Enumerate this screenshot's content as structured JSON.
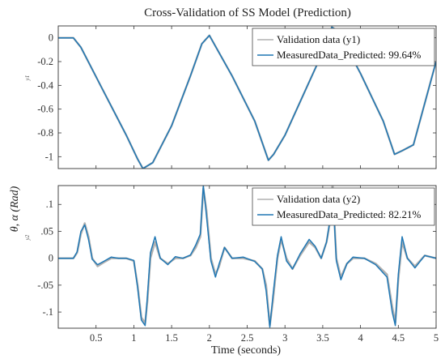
{
  "chart_data": [
    {
      "type": "line",
      "title": "Cross-Validation of SS Model (Prediction)",
      "ylabel": "y1",
      "ylim": [
        -1.1,
        0.1
      ],
      "yticks": [
        0,
        -0.2,
        -0.4,
        -0.6,
        -0.8,
        -1
      ],
      "xlim": [
        0,
        5
      ],
      "grid": false,
      "legend_position": "top-right",
      "series": [
        {
          "name": "Validation data (y1)",
          "color": "#b0b0b0",
          "x": [
            0,
            0.2,
            0.3,
            0.6,
            0.9,
            1.05,
            1.12,
            1.25,
            1.5,
            1.75,
            1.9,
            2.0,
            2.3,
            2.6,
            2.78,
            2.85,
            3.0,
            3.3,
            3.55,
            3.62,
            3.7,
            4.0,
            4.3,
            4.45,
            4.55,
            4.7,
            5.0
          ],
          "y": [
            0,
            0,
            -0.08,
            -0.45,
            -0.82,
            -1.02,
            -1.1,
            -1.05,
            -0.74,
            -0.32,
            -0.05,
            0.02,
            -0.32,
            -0.7,
            -1.03,
            -0.98,
            -0.82,
            -0.4,
            -0.05,
            0.09,
            0.06,
            -0.3,
            -0.7,
            -0.98,
            -0.95,
            -0.9,
            -0.2
          ]
        },
        {
          "name": "MeasuredData_Predicted: 99.64%",
          "color": "#1f77b4",
          "x": [
            0,
            0.2,
            0.3,
            0.6,
            0.9,
            1.05,
            1.12,
            1.25,
            1.5,
            1.75,
            1.9,
            2.0,
            2.3,
            2.6,
            2.78,
            2.85,
            3.0,
            3.3,
            3.55,
            3.62,
            3.7,
            4.0,
            4.3,
            4.45,
            4.55,
            4.7,
            5.0
          ],
          "y": [
            0,
            0,
            -0.08,
            -0.45,
            -0.82,
            -1.02,
            -1.1,
            -1.05,
            -0.74,
            -0.32,
            -0.05,
            0.02,
            -0.32,
            -0.7,
            -1.03,
            -0.98,
            -0.82,
            -0.4,
            -0.05,
            0.09,
            0.06,
            -0.3,
            -0.7,
            -0.98,
            -0.95,
            -0.9,
            -0.2
          ]
        }
      ]
    },
    {
      "type": "line",
      "xlabel": "Time (seconds)",
      "ylabel": "y2",
      "ylim": [
        -0.13,
        0.135
      ],
      "yticks": [
        0.1,
        0.05,
        0,
        -0.05,
        -0.1
      ],
      "xlim": [
        0,
        5
      ],
      "xticks": [
        0.5,
        1,
        1.5,
        2,
        2.5,
        3,
        3.5,
        4,
        4.5,
        5
      ],
      "grid": false,
      "legend_position": "top-right",
      "series": [
        {
          "name": "Validation data (y2)",
          "color": "#b0b0b0",
          "x": [
            0,
            0.2,
            0.25,
            0.3,
            0.35,
            0.4,
            0.45,
            0.52,
            0.6,
            0.7,
            0.8,
            0.9,
            1.0,
            1.05,
            1.1,
            1.15,
            1.18,
            1.22,
            1.28,
            1.35,
            1.45,
            1.55,
            1.65,
            1.75,
            1.82,
            1.88,
            1.92,
            1.96,
            2.02,
            2.08,
            2.13,
            2.2,
            2.3,
            2.45,
            2.6,
            2.7,
            2.75,
            2.8,
            2.84,
            2.9,
            2.95,
            3.02,
            3.1,
            3.2,
            3.32,
            3.4,
            3.48,
            3.55,
            3.6,
            3.63,
            3.68,
            3.74,
            3.82,
            3.9,
            4.05,
            4.2,
            4.35,
            4.42,
            4.46,
            4.5,
            4.55,
            4.62,
            4.72,
            4.85,
            5.0
          ],
          "y": [
            0,
            0,
            0.01,
            0.045,
            0.065,
            0.04,
            0.0,
            -0.015,
            -0.008,
            0.0,
            0.0,
            0.0,
            -0.005,
            -0.05,
            -0.11,
            -0.12,
            -0.08,
            0.0,
            0.03,
            0.0,
            -0.01,
            0.0,
            0.0,
            0.005,
            0.02,
            0.04,
            0.13,
            0.09,
            0.0,
            -0.03,
            -0.015,
            0.02,
            0.0,
            0.0,
            -0.005,
            -0.02,
            -0.05,
            -0.125,
            -0.08,
            0.0,
            0.035,
            0.0,
            -0.02,
            0.005,
            0.03,
            0.02,
            0.0,
            0.03,
            0.07,
            0.14,
            0.0,
            -0.035,
            -0.01,
            0.0,
            0.0,
            -0.01,
            -0.03,
            -0.09,
            -0.12,
            -0.04,
            0.03,
            0.0,
            -0.015,
            0.005,
            0.0
          ]
        },
        {
          "name": "MeasuredData_Predicted: 82.21%",
          "color": "#1f77b4",
          "x": [
            0,
            0.2,
            0.25,
            0.3,
            0.35,
            0.4,
            0.45,
            0.52,
            0.6,
            0.7,
            0.8,
            0.9,
            1.0,
            1.05,
            1.1,
            1.15,
            1.18,
            1.22,
            1.28,
            1.35,
            1.45,
            1.55,
            1.65,
            1.75,
            1.82,
            1.88,
            1.92,
            1.96,
            2.02,
            2.08,
            2.13,
            2.2,
            2.3,
            2.45,
            2.6,
            2.7,
            2.75,
            2.8,
            2.84,
            2.9,
            2.95,
            3.02,
            3.1,
            3.2,
            3.32,
            3.4,
            3.48,
            3.55,
            3.6,
            3.63,
            3.68,
            3.74,
            3.82,
            3.9,
            4.05,
            4.2,
            4.35,
            4.42,
            4.46,
            4.5,
            4.55,
            4.62,
            4.72,
            4.85,
            5.0
          ],
          "y": [
            0,
            0,
            0.012,
            0.05,
            0.062,
            0.035,
            -0.002,
            -0.012,
            -0.006,
            0.002,
            0.0,
            0.0,
            -0.004,
            -0.055,
            -0.115,
            -0.125,
            -0.07,
            0.01,
            0.04,
            0.0,
            -0.012,
            0.003,
            0.0,
            0.006,
            0.025,
            0.045,
            0.135,
            0.08,
            -0.005,
            -0.035,
            -0.01,
            0.02,
            0.0,
            0.002,
            -0.006,
            -0.02,
            -0.06,
            -0.128,
            -0.07,
            0.005,
            0.04,
            -0.005,
            -0.02,
            0.008,
            0.035,
            0.022,
            0.0,
            0.03,
            0.075,
            0.13,
            -0.005,
            -0.04,
            -0.01,
            0.002,
            0.0,
            -0.012,
            -0.035,
            -0.1,
            -0.125,
            -0.03,
            0.04,
            0.0,
            -0.018,
            0.005,
            0.0
          ]
        }
      ]
    }
  ],
  "figure": {
    "shared_ylabel": "θ, α (Rad)"
  }
}
